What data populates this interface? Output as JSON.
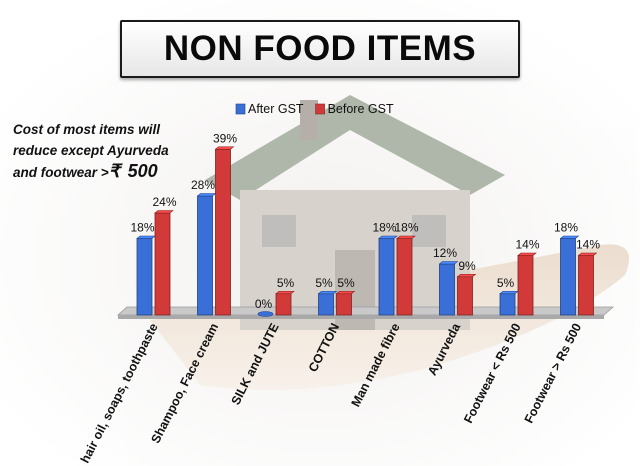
{
  "page": {
    "title": "NON FOOD ITEMS",
    "note": {
      "line1": "Cost of most items will",
      "line2": "reduce except Ayurveda",
      "line3": "and footwear >",
      "currency": "₹",
      "amount": "500"
    }
  },
  "colors": {
    "after_gst": "#3a6fd8",
    "before_gst": "#d23a3a",
    "floor": "#c9c9c9"
  },
  "chart_data": {
    "type": "bar",
    "categories": [
      "hair oil, soaps, toothpaste",
      "Shampoo, Face cream",
      "SILK and JUTE",
      "COTTON",
      "Man made fibre",
      "Ayurveda",
      "Footwear < Rs 500",
      "Footwear > Rs 500"
    ],
    "series": [
      {
        "name": "After GST",
        "values": [
          18,
          28,
          0,
          5,
          18,
          12,
          5,
          18
        ]
      },
      {
        "name": "Before GST",
        "values": [
          24,
          39,
          5,
          5,
          18,
          9,
          14,
          14
        ]
      }
    ],
    "value_suffix": "%",
    "ylim": [
      0,
      40
    ],
    "grid": false,
    "legend": "top-center",
    "title": "",
    "xlabel": "",
    "ylabel": ""
  }
}
